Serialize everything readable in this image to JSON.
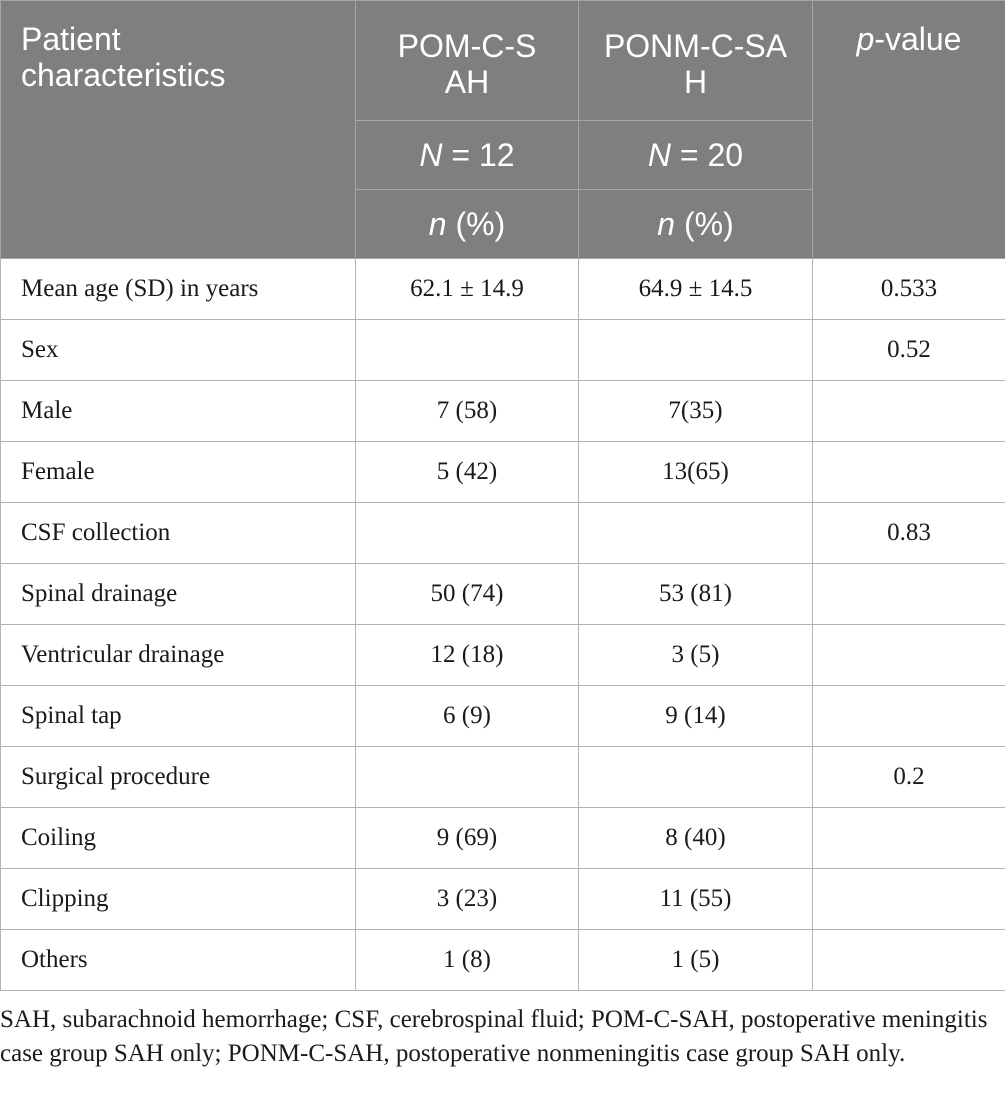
{
  "header": {
    "col1": "Patient characteristics",
    "col2": "POM-C-SAH",
    "col3": "PONM-C-SAH",
    "col4_italic": "p",
    "col4_rest": "-value",
    "n_label": "N",
    "n_col2_rest": " = 12",
    "n_col3_rest": " = 20",
    "pct_italic": "n",
    "pct_rest": " (%)"
  },
  "rows": [
    {
      "label": "Mean age (SD) in years",
      "pom": "62.1 ± 14.9",
      "ponm": "64.9 ± 14.5",
      "p": "0.533"
    },
    {
      "label": "Sex",
      "pom": "",
      "ponm": "",
      "p": "0.52"
    },
    {
      "label": "Male",
      "pom": "7 (58)",
      "ponm": "7(35)",
      "p": ""
    },
    {
      "label": "Female",
      "pom": "5 (42)",
      "ponm": "13(65)",
      "p": ""
    },
    {
      "label": "CSF collection",
      "pom": "",
      "ponm": "",
      "p": "0.83"
    },
    {
      "label": "Spinal drainage",
      "pom": "50 (74)",
      "ponm": "53 (81)",
      "p": ""
    },
    {
      "label": "Ventricular drainage",
      "pom": "12 (18)",
      "ponm": "3 (5)",
      "p": ""
    },
    {
      "label": "Spinal tap",
      "pom": "6 (9)",
      "ponm": "9 (14)",
      "p": ""
    },
    {
      "label": "Surgical procedure",
      "pom": "",
      "ponm": "",
      "p": "0.2"
    },
    {
      "label": "Coiling",
      "pom": "9 (69)",
      "ponm": "8 (40)",
      "p": ""
    },
    {
      "label": "Clipping",
      "pom": "3 (23)",
      "ponm": "11 (55)",
      "p": ""
    },
    {
      "label": "Others",
      "pom": "1 (8)",
      "ponm": "1 (5)",
      "p": ""
    }
  ],
  "footnote": "SAH, subarachnoid hemorrhage; CSF, cerebrospinal fluid; POM-C-SAH, postoperative meningitis case group SAH only; PONM-C-SAH, postoperative nonmeningitis case group SAH only.",
  "colors": {
    "header_bg": "#7f7f7f",
    "header_text": "#ffffff",
    "grid": "#b3b3b3"
  }
}
